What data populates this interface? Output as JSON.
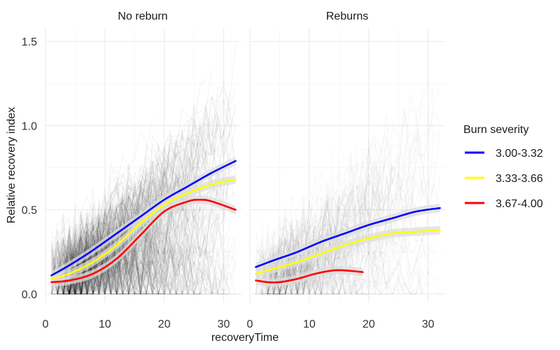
{
  "chart_data": {
    "type": "line",
    "xlabel": "recoveryTime",
    "ylabel": "Relative recovery index",
    "xlim": [
      0,
      33
    ],
    "ylim": [
      -0.05,
      1.58
    ],
    "x_ticks": [
      0,
      10,
      20,
      30
    ],
    "y_ticks": [
      0.0,
      0.5,
      1.0,
      1.5
    ],
    "y_tick_labels": [
      "0.0",
      "0.5",
      "1.0",
      "1.5"
    ],
    "grid": true,
    "legend": {
      "title": "Burn severity",
      "placement": "right",
      "entries": [
        {
          "label": "3.00-3.32",
          "color": "#0000ff"
        },
        {
          "label": "3.33-3.66",
          "color": "#ffff00"
        },
        {
          "label": "3.67-4.00",
          "color": "#ff0000"
        }
      ]
    },
    "facets": [
      {
        "label": "No reburn",
        "series": [
          {
            "name": "3.00-3.32",
            "color": "#0000ff",
            "x": [
              1,
              4,
              8,
              12,
              16,
              20,
              24,
              28,
              32
            ],
            "y": [
              0.11,
              0.17,
              0.26,
              0.36,
              0.46,
              0.56,
              0.64,
              0.72,
              0.79
            ]
          },
          {
            "name": "3.33-3.66",
            "color": "#ffff00",
            "x": [
              1,
              4,
              8,
              12,
              16,
              20,
              24,
              28,
              32
            ],
            "y": [
              0.09,
              0.12,
              0.19,
              0.29,
              0.42,
              0.53,
              0.6,
              0.65,
              0.68
            ]
          },
          {
            "name": "3.67-4.00",
            "color": "#ff0000",
            "x": [
              1,
              4,
              8,
              12,
              16,
              20,
              24,
              26,
              28,
              32
            ],
            "y": [
              0.07,
              0.08,
              0.12,
              0.21,
              0.35,
              0.49,
              0.55,
              0.56,
              0.55,
              0.5
            ]
          }
        ]
      },
      {
        "label": "Reburns",
        "series": [
          {
            "name": "3.00-3.32",
            "color": "#0000ff",
            "x": [
              1,
              4,
              8,
              12,
              16,
              20,
              24,
              28,
              32
            ],
            "y": [
              0.16,
              0.2,
              0.25,
              0.31,
              0.36,
              0.41,
              0.45,
              0.49,
              0.51
            ]
          },
          {
            "name": "3.33-3.66",
            "color": "#ffff00",
            "x": [
              1,
              4,
              8,
              12,
              16,
              20,
              24,
              28,
              32
            ],
            "y": [
              0.12,
              0.15,
              0.19,
              0.24,
              0.29,
              0.33,
              0.36,
              0.37,
              0.38
            ]
          },
          {
            "name": "3.67-4.00",
            "color": "#ff0000",
            "x": [
              1,
              3,
              5,
              8,
              11,
              14,
              16,
              19
            ],
            "y": [
              0.08,
              0.07,
              0.07,
              0.09,
              0.12,
              0.14,
              0.14,
              0.13
            ]
          }
        ]
      }
    ]
  }
}
